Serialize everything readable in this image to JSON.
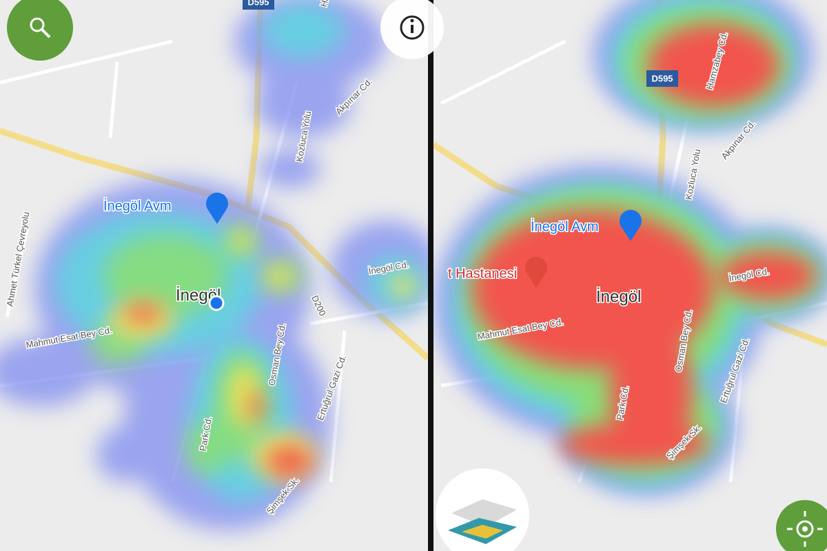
{
  "left_panel": {
    "labels": [
      "D595",
      "Hamza",
      "Akpınar Cd.",
      "Kozluca Yolu",
      "İnegöl Avm",
      "İnegöl",
      "D200",
      "İnegöl Cd.",
      "Ahmet Türkel Çevreyolu",
      "Mahmut Esat Bey Cd.",
      "Osman Bey Cd.",
      "Park Cd.",
      "Ertuğrul Gazi Cd.",
      "Şimşek Sk."
    ]
  },
  "right_panel": {
    "labels": [
      "D595",
      "Hamzabey Cd.",
      "Akpınar Cd.",
      "Kozluca Yolu",
      "İnegöl Avm",
      "t Hastanesi",
      "İnegöl",
      "İnegöl Cd.",
      "Mahmut Esat Bey Cd.",
      "Osman Bey Cd.",
      "Park Cd.",
      "Ertuğrul Gazi Cd.",
      "Şimşek Sk."
    ]
  }
}
